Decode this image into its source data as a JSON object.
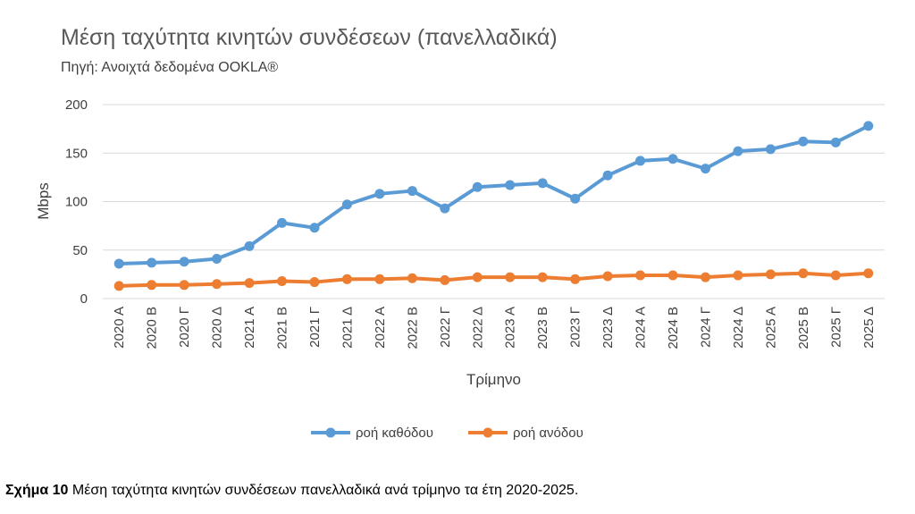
{
  "chart_data": {
    "type": "line",
    "title": "Μέση ταχύτητα κινητών συνδέσεων (πανελλαδικά)",
    "subtitle": "Πηγή: Ανοιχτά δεδομένα OOKLA®",
    "xlabel": "Τρίμηνο",
    "ylabel": "Mbps",
    "ylim": [
      0,
      200
    ],
    "yticks": [
      0,
      50,
      100,
      150,
      200
    ],
    "grid": true,
    "legend_position": "bottom",
    "categories": [
      "2020 Α",
      "2020 Β",
      "2020 Γ",
      "2020 Δ",
      "2021 Α",
      "2021 Β",
      "2021 Γ",
      "2021 Δ",
      "2022 Α",
      "2022 Β",
      "2022 Γ",
      "2022 Δ",
      "2023 Α",
      "2023 Β",
      "2023 Γ",
      "2023 Δ",
      "2024 Α",
      "2024 Β",
      "2024 Γ",
      "2024 Δ",
      "2025 Α",
      "2025 Β",
      "2025 Γ",
      "2025 Δ"
    ],
    "series": [
      {
        "name": "ροή καθόδου",
        "color": "#5b9bd5",
        "values": [
          36,
          37,
          38,
          41,
          54,
          78,
          73,
          97,
          108,
          111,
          93,
          115,
          117,
          119,
          103,
          127,
          142,
          144,
          134,
          152,
          154,
          162,
          161,
          178
        ]
      },
      {
        "name": "ροή ανόδου",
        "color": "#ed7d31",
        "values": [
          13,
          14,
          14,
          15,
          16,
          18,
          17,
          20,
          20,
          21,
          19,
          22,
          22,
          22,
          20,
          23,
          24,
          24,
          22,
          24,
          25,
          26,
          24,
          26
        ]
      }
    ]
  },
  "caption": {
    "label": "Σχήμα 10",
    "text": " Μέση ταχύτητα κινητών συνδέσεων πανελλαδικά ανά τρίμηνο τα έτη 2020-2025."
  }
}
